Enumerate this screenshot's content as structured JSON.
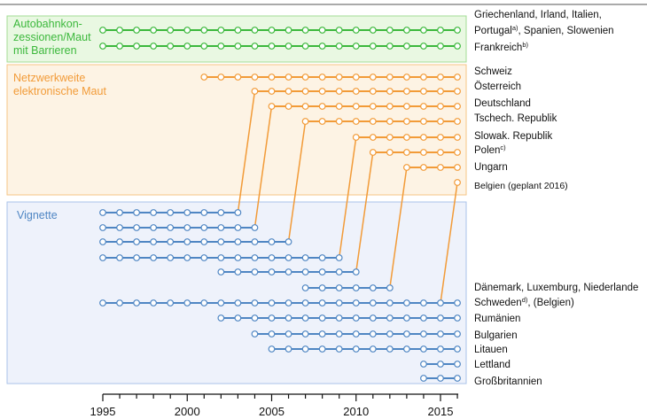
{
  "chart_data": {
    "type": "timeline",
    "x_range": [
      1995,
      2016
    ],
    "x_ticks": [
      1995,
      2000,
      2005,
      2010,
      2015
    ],
    "groups": [
      {
        "id": "maut",
        "title_lines": [
          "Autobahnkon-",
          "zessionen/Maut",
          "mit Barrieren"
        ],
        "color": "#3cb83c",
        "fill": "#e9f8e2",
        "border": "#a3dd94"
      },
      {
        "id": "netz",
        "title_lines": [
          "Netzwerkweite",
          "elektronische Maut"
        ],
        "color": "#f29b38",
        "fill": "#fdf3e4",
        "border": "#f6c585"
      },
      {
        "id": "vignette",
        "title_lines": [
          "Vignette"
        ],
        "color": "#4f86c3",
        "fill": "#eef2fb",
        "border": "#aac3e8"
      }
    ],
    "rows": [
      {
        "group": "maut",
        "start": 1995,
        "end": 2016,
        "labels": [
          {
            "text": "Griechenland, Irland, Italien,"
          },
          {
            "text": "Portugal",
            "sup": "a)",
            "rest": ", Spanien, Slowenien"
          }
        ]
      },
      {
        "group": "maut",
        "start": 1995,
        "end": 2016,
        "labels": [
          {
            "text": "Frankreich",
            "sup": "b)"
          }
        ]
      },
      {
        "group": "netz",
        "start": 2001,
        "end": 2016,
        "labels": [
          {
            "text": "Schweiz"
          }
        ]
      },
      {
        "group": "netz",
        "start": 2004,
        "end": 2016,
        "labels": [
          {
            "text": "Österreich"
          }
        ]
      },
      {
        "group": "netz",
        "start": 2005,
        "end": 2016,
        "labels": [
          {
            "text": "Deutschland"
          }
        ]
      },
      {
        "group": "netz",
        "start": 2007,
        "end": 2016,
        "labels": [
          {
            "text": "Tschech. Republik"
          }
        ]
      },
      {
        "group": "netz",
        "start": 2010,
        "end": 2016,
        "labels": [
          {
            "text": "Slowak. Republik"
          }
        ]
      },
      {
        "group": "netz",
        "start": 2011,
        "end": 2016,
        "labels": [
          {
            "text": "Polen",
            "sup": "c)"
          }
        ]
      },
      {
        "group": "netz",
        "start": 2013,
        "end": 2016,
        "labels": [
          {
            "text": "Ungarn"
          }
        ]
      },
      {
        "group": "netz",
        "start": 2016,
        "end": 2016,
        "labels": [
          {
            "text": "Belgien (geplant 2016)",
            "small": true
          }
        ]
      },
      {
        "group": "vignette",
        "start": 1995,
        "end": 2003,
        "labels": []
      },
      {
        "group": "vignette",
        "start": 1995,
        "end": 2004,
        "labels": []
      },
      {
        "group": "vignette",
        "start": 1995,
        "end": 2006,
        "labels": []
      },
      {
        "group": "vignette",
        "start": 1995,
        "end": 2009,
        "labels": []
      },
      {
        "group": "vignette",
        "start": 2002,
        "end": 2010,
        "labels": []
      },
      {
        "group": "vignette",
        "start": 2007,
        "end": 2012,
        "labels": [
          {
            "text": "Dänemark, Luxemburg, Niederlande"
          }
        ]
      },
      {
        "group": "vignette",
        "start": 1995,
        "end": 2016,
        "labels": [
          {
            "text": "Schweden",
            "sup": "d)",
            "rest": ", (Belgien)"
          }
        ]
      },
      {
        "group": "vignette",
        "start": 2002,
        "end": 2016,
        "labels": [
          {
            "text": "Rumänien"
          }
        ]
      },
      {
        "group": "vignette",
        "start": 2004,
        "end": 2016,
        "labels": [
          {
            "text": "Bulgarien"
          }
        ]
      },
      {
        "group": "vignette",
        "start": 2005,
        "end": 2016,
        "labels": [
          {
            "text": "Litauen"
          }
        ]
      },
      {
        "group": "vignette",
        "start": 2014,
        "end": 2016,
        "labels": [
          {
            "text": "Lettland"
          }
        ]
      },
      {
        "group": "vignette",
        "start": 2014,
        "end": 2016,
        "labels": [
          {
            "text": "Großbritannien"
          }
        ]
      }
    ],
    "transitions": [
      {
        "from_row": 10,
        "to_row": 3,
        "year_from": 2003,
        "year_to": 2004
      },
      {
        "from_row": 11,
        "to_row": 4,
        "year_from": 2004,
        "year_to": 2005
      },
      {
        "from_row": 12,
        "to_row": 5,
        "year_from": 2006,
        "year_to": 2007
      },
      {
        "from_row": 13,
        "to_row": 6,
        "year_from": 2009,
        "year_to": 2010
      },
      {
        "from_row": 14,
        "to_row": 7,
        "year_from": 2010,
        "year_to": 2011
      },
      {
        "from_row": 15,
        "to_row": 8,
        "year_from": 2012,
        "year_to": 2013
      },
      {
        "from_row": 16,
        "to_row": 9,
        "year_from": 2015,
        "year_to": 2016
      }
    ]
  }
}
